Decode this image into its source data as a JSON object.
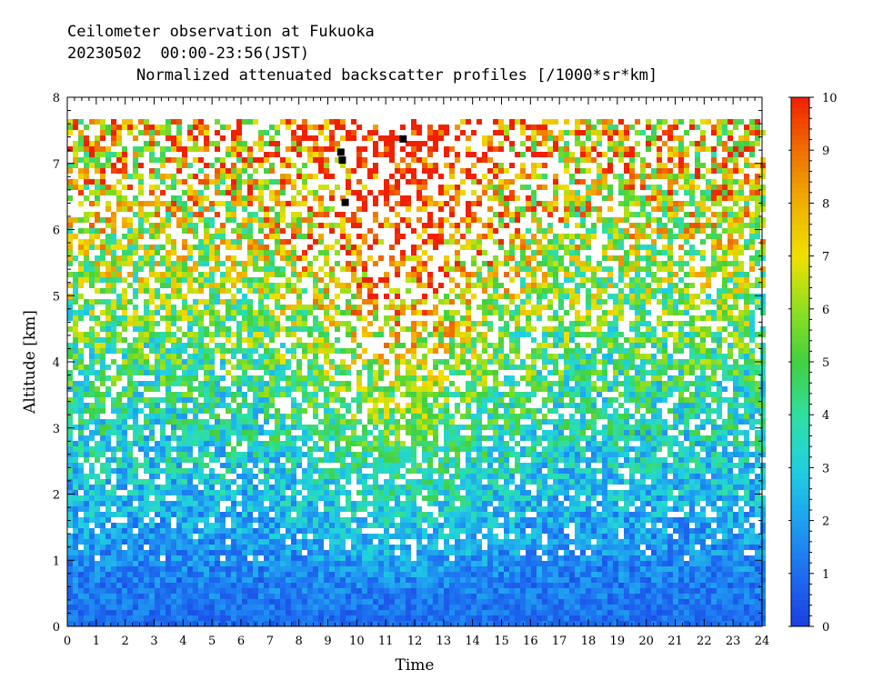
{
  "header": {
    "line1": "Ceilometer observation at Fukuoka",
    "line2": "20230502  00:00-23:56(JST)",
    "line3": "Normalized attenuated backscatter profiles [/1000*sr*km]"
  },
  "chart_data": {
    "type": "heatmap",
    "xlabel": "Time",
    "ylabel": "Altitude [km]",
    "xlim": [
      0,
      24
    ],
    "ylim": [
      0,
      8
    ],
    "x_ticks": [
      "0",
      "1",
      "2",
      "3",
      "4",
      "5",
      "6",
      "7",
      "8",
      "9",
      "10",
      "11",
      "12",
      "13",
      "14",
      "15",
      "16",
      "17",
      "18",
      "19",
      "20",
      "21",
      "22",
      "23",
      "24"
    ],
    "y_ticks": [
      "0",
      "1",
      "2",
      "3",
      "4",
      "5",
      "6",
      "7",
      "8"
    ],
    "data_top_altitude_km": 7.67,
    "colorbar": {
      "range": [
        0,
        10
      ],
      "ticks": [
        "0",
        "1",
        "2",
        "3",
        "4",
        "5",
        "6",
        "7",
        "8",
        "9",
        "10"
      ],
      "colors": [
        "#1a3fe0",
        "#1d6df0",
        "#1fa0f0",
        "#20d0e0",
        "#30e0a0",
        "#40d040",
        "#90e020",
        "#f0e000",
        "#f0b000",
        "#f07000",
        "#f02000"
      ]
    },
    "grid": false,
    "markers": [
      {
        "x": 9.45,
        "y": 7.17
      },
      {
        "x": 9.5,
        "y": 7.05
      },
      {
        "x": 9.6,
        "y": 6.41
      },
      {
        "x": 11.6,
        "y": 7.37
      }
    ]
  }
}
